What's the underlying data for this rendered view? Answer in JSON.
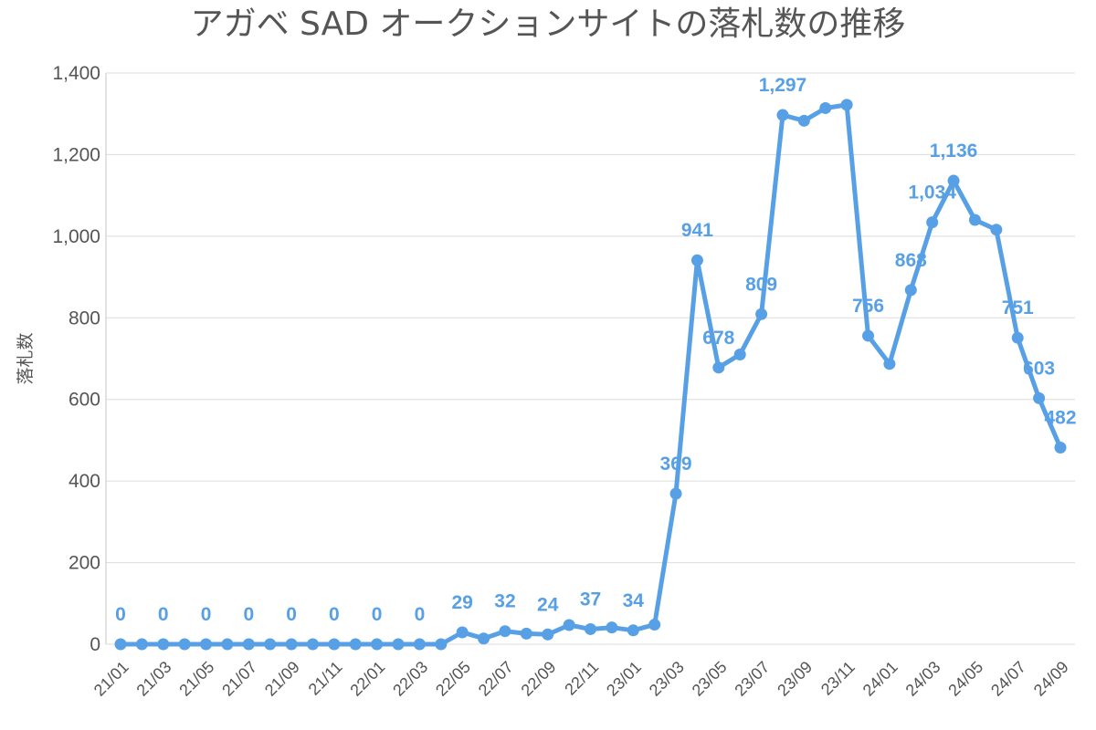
{
  "chart_data": {
    "type": "line",
    "title": "アガベ SAD オークションサイトの落札数の推移",
    "xlabel": "",
    "ylabel": "落札数",
    "ylim": [
      0,
      1400
    ],
    "yticks": [
      0,
      200,
      400,
      600,
      800,
      1000,
      1200,
      1400
    ],
    "ytick_labels": [
      "0",
      "200",
      "400",
      "600",
      "800",
      "1,000",
      "1,200",
      "1,400"
    ],
    "grid": true,
    "color": "#58a0e6",
    "categories": [
      "21/01",
      "21/02",
      "21/03",
      "21/04",
      "21/05",
      "21/06",
      "21/07",
      "21/08",
      "21/09",
      "21/10",
      "21/11",
      "21/12",
      "22/01",
      "22/02",
      "22/03",
      "22/04",
      "22/05",
      "22/06",
      "22/07",
      "22/08",
      "22/09",
      "22/10",
      "22/11",
      "22/12",
      "23/01",
      "23/02",
      "23/03",
      "23/04",
      "23/05",
      "23/06",
      "23/07",
      "23/08",
      "23/09",
      "23/10",
      "23/11",
      "23/12",
      "24/01",
      "24/02",
      "24/03",
      "24/04",
      "24/05",
      "24/06",
      "24/07",
      "24/08",
      "24/09"
    ],
    "x_tick_labels": [
      "21/01",
      "21/03",
      "21/05",
      "21/07",
      "21/09",
      "21/11",
      "22/01",
      "22/03",
      "22/05",
      "22/07",
      "22/09",
      "22/11",
      "23/01",
      "23/03",
      "23/05",
      "23/07",
      "23/09",
      "23/11",
      "24/01",
      "24/03",
      "24/05",
      "24/07",
      "24/09"
    ],
    "values": [
      0,
      0,
      0,
      0,
      0,
      0,
      0,
      0,
      0,
      0,
      0,
      0,
      0,
      0,
      0,
      0,
      29,
      14,
      32,
      26,
      24,
      47,
      37,
      41,
      34,
      48,
      369,
      941,
      678,
      710,
      809,
      1297,
      1283,
      1314,
      1322,
      756,
      687,
      868,
      1034,
      1136,
      1040,
      1016,
      751,
      603,
      482
    ],
    "data_labels": [
      {
        "index": 0,
        "text": "0"
      },
      {
        "index": 2,
        "text": "0"
      },
      {
        "index": 4,
        "text": "0"
      },
      {
        "index": 6,
        "text": "0"
      },
      {
        "index": 8,
        "text": "0"
      },
      {
        "index": 10,
        "text": "0"
      },
      {
        "index": 12,
        "text": "0"
      },
      {
        "index": 14,
        "text": "0"
      },
      {
        "index": 16,
        "text": "29"
      },
      {
        "index": 18,
        "text": "32"
      },
      {
        "index": 20,
        "text": "24"
      },
      {
        "index": 22,
        "text": "37"
      },
      {
        "index": 24,
        "text": "34"
      },
      {
        "index": 26,
        "text": "369"
      },
      {
        "index": 27,
        "text": "941"
      },
      {
        "index": 28,
        "text": "678"
      },
      {
        "index": 30,
        "text": "809"
      },
      {
        "index": 31,
        "text": "1,297"
      },
      {
        "index": 35,
        "text": "756"
      },
      {
        "index": 37,
        "text": "868"
      },
      {
        "index": 38,
        "text": "1,034"
      },
      {
        "index": 39,
        "text": "1,136"
      },
      {
        "index": 42,
        "text": "751"
      },
      {
        "index": 43,
        "text": "603"
      },
      {
        "index": 44,
        "text": "482"
      }
    ]
  }
}
